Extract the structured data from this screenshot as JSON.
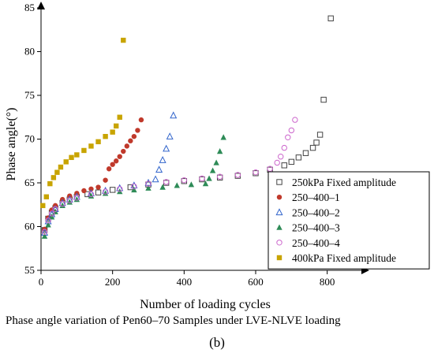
{
  "chart_data": {
    "type": "scatter",
    "xlabel": "Number of loading cycles",
    "ylabel": "Phase angle(°)",
    "xlim": [
      0,
      900
    ],
    "ylim": [
      55,
      85
    ],
    "xticks": [
      0,
      200,
      400,
      600,
      800
    ],
    "yticks": [
      55,
      60,
      65,
      70,
      75,
      80,
      85
    ],
    "legend_position": "right",
    "series": [
      {
        "name": "250kPa Fixed amplitude",
        "marker": "square-open",
        "color": "#444444",
        "x": [
          10,
          20,
          30,
          40,
          60,
          80,
          100,
          130,
          160,
          200,
          250,
          300,
          350,
          400,
          450,
          500,
          550,
          600,
          640,
          680,
          700,
          720,
          740,
          760,
          770,
          780,
          790,
          810
        ],
        "y": [
          59.6,
          60.9,
          61.6,
          62.1,
          62.7,
          63.1,
          63.4,
          63.7,
          63.9,
          64.2,
          64.5,
          64.8,
          65.0,
          65.2,
          65.4,
          65.6,
          65.8,
          66.1,
          66.5,
          67.0,
          67.4,
          67.9,
          68.4,
          69.0,
          69.6,
          70.5,
          74.5,
          83.8
        ]
      },
      {
        "name": "250–400–1",
        "marker": "circle-filled",
        "color": "#c0392b",
        "x": [
          10,
          20,
          30,
          40,
          60,
          80,
          100,
          120,
          140,
          160,
          180,
          190,
          200,
          210,
          220,
          230,
          240,
          250,
          260,
          270,
          280
        ],
        "y": [
          59.7,
          61.0,
          61.9,
          62.4,
          63.1,
          63.5,
          63.8,
          64.1,
          64.3,
          64.5,
          65.3,
          66.6,
          67.1,
          67.5,
          68.0,
          68.6,
          69.2,
          69.8,
          70.3,
          71.0,
          72.2
        ]
      },
      {
        "name": "250–400–2",
        "marker": "triangle-open",
        "color": "#3366cc",
        "x": [
          10,
          20,
          30,
          40,
          60,
          80,
          100,
          140,
          180,
          220,
          260,
          300,
          320,
          330,
          340,
          350,
          360,
          370
        ],
        "y": [
          59.3,
          60.6,
          61.4,
          62.0,
          62.7,
          63.1,
          63.4,
          63.8,
          64.1,
          64.4,
          64.7,
          65.0,
          65.4,
          66.5,
          67.6,
          68.9,
          70.3,
          72.7
        ]
      },
      {
        "name": "250–400–3",
        "marker": "triangle-filled",
        "color": "#2e8b57",
        "x": [
          10,
          20,
          30,
          40,
          60,
          80,
          100,
          140,
          180,
          220,
          260,
          300,
          340,
          380,
          420,
          460,
          470,
          480,
          490,
          500,
          510
        ],
        "y": [
          58.9,
          60.2,
          61.1,
          61.7,
          62.4,
          62.8,
          63.1,
          63.5,
          63.8,
          64.0,
          64.2,
          64.4,
          64.5,
          64.7,
          64.8,
          64.9,
          65.5,
          66.4,
          67.3,
          68.6,
          70.2
        ]
      },
      {
        "name": "250–400–4",
        "marker": "circle-open",
        "color": "#cc66cc",
        "x": [
          10,
          20,
          30,
          40,
          60,
          80,
          100,
          140,
          180,
          220,
          260,
          300,
          350,
          400,
          450,
          500,
          550,
          600,
          640,
          660,
          670,
          680,
          690,
          700,
          710
        ],
        "y": [
          59.4,
          60.7,
          61.5,
          62.0,
          62.6,
          63.0,
          63.3,
          63.7,
          64.0,
          64.3,
          64.6,
          64.9,
          65.1,
          65.3,
          65.5,
          65.7,
          65.9,
          66.2,
          66.6,
          67.3,
          68.0,
          69.0,
          70.2,
          71.0,
          72.2
        ]
      },
      {
        "name": "400kPa Fixed amplitude",
        "marker": "square-filled",
        "color": "#c8a400",
        "x": [
          5,
          15,
          25,
          35,
          45,
          55,
          70,
          85,
          100,
          120,
          140,
          160,
          180,
          200,
          210,
          220,
          230
        ],
        "y": [
          62.4,
          63.4,
          64.9,
          65.6,
          66.2,
          66.8,
          67.4,
          67.9,
          68.2,
          68.7,
          69.2,
          69.7,
          70.3,
          70.8,
          71.5,
          72.5,
          81.3
        ]
      }
    ]
  },
  "caption": "Phase angle variation of Pen60–70 Samples under LVE-NLVE loading",
  "panel_label": "(b)"
}
